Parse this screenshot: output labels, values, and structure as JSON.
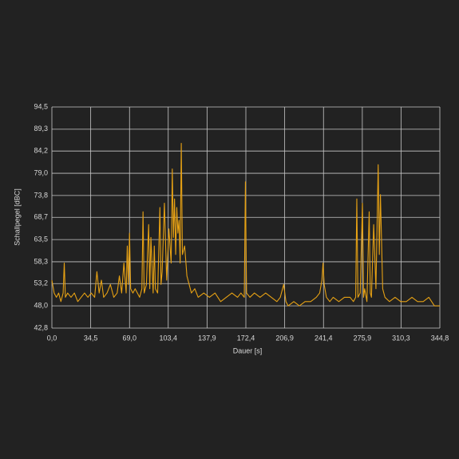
{
  "chart_data": {
    "type": "line",
    "xlabel": "Dauer [s]",
    "ylabel": "Schallpegel [dBC]",
    "xlim": [
      0,
      344.8
    ],
    "ylim": [
      42.8,
      94.5
    ],
    "xticks": [
      {
        "value": 0,
        "label": "0,0"
      },
      {
        "value": 34.5,
        "label": "34,5"
      },
      {
        "value": 69,
        "label": "69,0"
      },
      {
        "value": 103.4,
        "label": "103,4"
      },
      {
        "value": 137.9,
        "label": "137,9"
      },
      {
        "value": 172.4,
        "label": "172,4"
      },
      {
        "value": 206.9,
        "label": "206,9"
      },
      {
        "value": 241.4,
        "label": "241,4"
      },
      {
        "value": 275.9,
        "label": "275,9"
      },
      {
        "value": 310.3,
        "label": "310,3"
      },
      {
        "value": 344.8,
        "label": "344,8"
      }
    ],
    "yticks": [
      {
        "value": 42.8,
        "label": "42,8"
      },
      {
        "value": 48,
        "label": "48,0"
      },
      {
        "value": 53.2,
        "label": "53,2"
      },
      {
        "value": 58.3,
        "label": "58,3"
      },
      {
        "value": 63.5,
        "label": "63,5"
      },
      {
        "value": 68.7,
        "label": "68,7"
      },
      {
        "value": 73.8,
        "label": "73,8"
      },
      {
        "value": 79,
        "label": "79,0"
      },
      {
        "value": 84.2,
        "label": "84,2"
      },
      {
        "value": 89.3,
        "label": "89,3"
      },
      {
        "value": 94.5,
        "label": "94,5"
      }
    ],
    "grid": true,
    "series": [
      {
        "color": "#e6a114",
        "x": [
          0,
          2,
          4,
          6,
          8,
          10,
          11,
          12,
          14,
          17,
          20,
          23,
          26,
          29,
          32,
          35,
          38,
          40,
          42,
          44,
          46,
          49,
          52,
          55,
          58,
          60,
          62,
          64,
          66,
          67,
          68,
          69,
          70,
          72,
          74,
          76,
          78,
          80,
          81,
          82,
          84,
          86,
          87,
          88,
          90,
          91,
          92,
          94,
          96,
          97,
          98,
          100,
          102,
          104,
          106,
          107,
          108,
          109,
          110,
          111,
          112,
          113,
          114,
          115,
          116,
          118,
          120,
          122,
          124,
          127,
          130,
          135,
          140,
          145,
          150,
          155,
          160,
          165,
          168,
          171,
          172,
          173,
          176,
          180,
          185,
          190,
          195,
          200,
          203,
          206,
          208,
          210,
          215,
          220,
          225,
          230,
          235,
          238,
          240,
          241,
          242,
          244,
          247,
          250,
          255,
          260,
          265,
          268,
          270,
          271,
          272,
          274,
          276,
          277,
          278,
          280,
          282,
          283,
          284,
          286,
          288,
          290,
          291,
          292,
          294,
          296,
          300,
          305,
          310,
          315,
          320,
          325,
          330,
          335,
          340,
          344.8
        ],
        "values": [
          54,
          51,
          50,
          51,
          49,
          51,
          58,
          50,
          51,
          50,
          51,
          49,
          50,
          51,
          50,
          51,
          50,
          56,
          51,
          54,
          50,
          51,
          53,
          50,
          51,
          55,
          51,
          58,
          51,
          62,
          53,
          65,
          52,
          51,
          52,
          51,
          50,
          52,
          70,
          51,
          53,
          67,
          52,
          64,
          51,
          62,
          52,
          51,
          71,
          53,
          56,
          72,
          54,
          66,
          58,
          80,
          64,
          73,
          60,
          71,
          65,
          68,
          58,
          86,
          60,
          62,
          55,
          53,
          51,
          52,
          50,
          51,
          50,
          51,
          49,
          50,
          51,
          50,
          51,
          50,
          77,
          51,
          50,
          51,
          50,
          51,
          50,
          49,
          50,
          53,
          49,
          48,
          49,
          48,
          49,
          49,
          50,
          51,
          54,
          58,
          53,
          50,
          49,
          50,
          49,
          50,
          50,
          49,
          50,
          73,
          50,
          51,
          72,
          50,
          52,
          49,
          70,
          51,
          50,
          67,
          52,
          81,
          60,
          74,
          52,
          50,
          49,
          50,
          49,
          49,
          50,
          49,
          49,
          50,
          48,
          48
        ]
      }
    ]
  }
}
